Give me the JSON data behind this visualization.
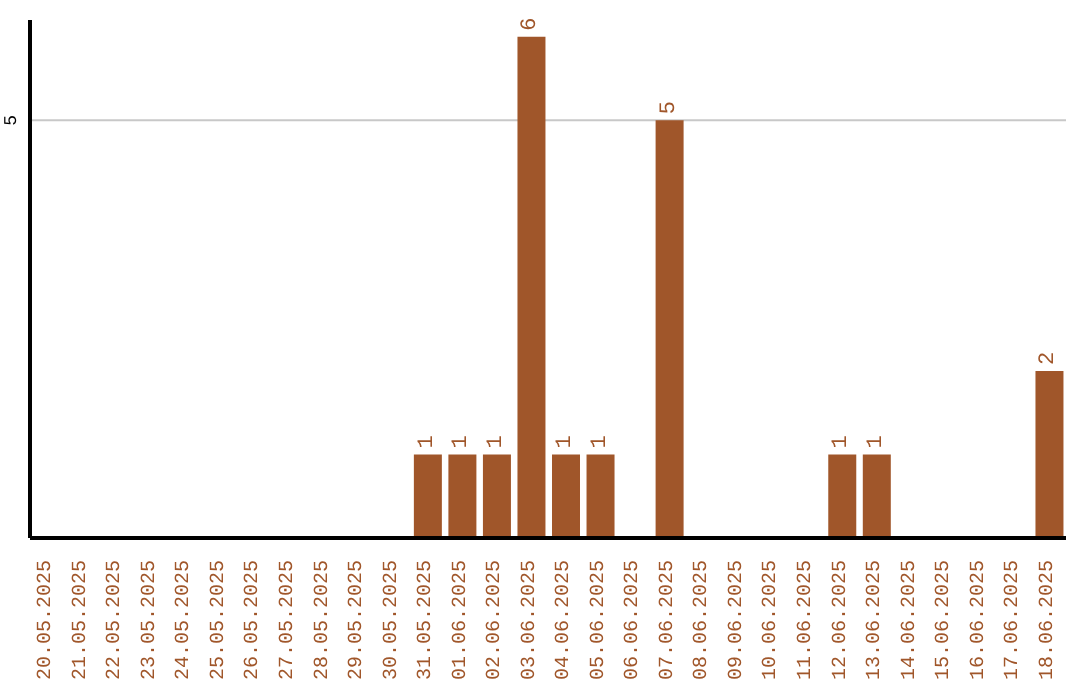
{
  "chart_data": {
    "type": "bar",
    "categories": [
      "20.05.2025",
      "21.05.2025",
      "22.05.2025",
      "23.05.2025",
      "24.05.2025",
      "25.05.2025",
      "26.05.2025",
      "27.05.2025",
      "28.05.2025",
      "29.05.2025",
      "30.05.2025",
      "31.05.2025",
      "01.06.2025",
      "02.06.2025",
      "03.06.2025",
      "04.06.2025",
      "05.06.2025",
      "06.06.2025",
      "07.06.2025",
      "08.06.2025",
      "09.06.2025",
      "10.06.2025",
      "11.06.2025",
      "12.06.2025",
      "13.06.2025",
      "14.06.2025",
      "15.06.2025",
      "16.06.2025",
      "17.06.2025",
      "18.06.2025"
    ],
    "values": [
      0,
      0,
      0,
      0,
      0,
      0,
      0,
      0,
      0,
      0,
      0,
      1,
      1,
      1,
      6,
      1,
      1,
      0,
      5,
      0,
      0,
      0,
      0,
      1,
      1,
      0,
      0,
      0,
      0,
      2
    ],
    "value_labels": [
      null,
      null,
      null,
      null,
      null,
      null,
      null,
      null,
      null,
      null,
      null,
      "1",
      "1",
      "1",
      "6",
      "1",
      "1",
      null,
      "5",
      null,
      null,
      null,
      null,
      "1",
      "1",
      null,
      null,
      null,
      null,
      "2"
    ],
    "color": "#a0562a",
    "ylim": [
      0,
      6.2
    ],
    "yticks": [
      5
    ],
    "grid": "y"
  }
}
